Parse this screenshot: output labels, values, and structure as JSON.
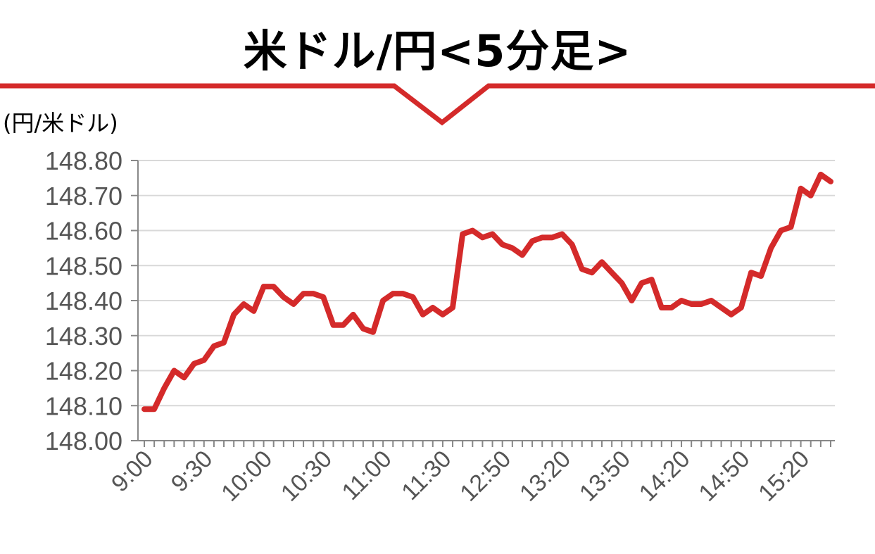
{
  "chart_data": {
    "type": "line",
    "title": "米ドル/円<5分足>",
    "ylabel": "(円/米ドル)",
    "xlabel": "",
    "ylim": [
      148.0,
      148.8
    ],
    "yticks": [
      "148.80",
      "148.70",
      "148.60",
      "148.50",
      "148.40",
      "148.30",
      "148.20",
      "148.10",
      "148.00"
    ],
    "xtick_labels": [
      "9:00",
      "9:30",
      "10:00",
      "10:30",
      "11:00",
      "11:30",
      "12:50",
      "13:20",
      "13:50",
      "14:20",
      "14:50",
      "15:20"
    ],
    "grid": true,
    "legend": "none",
    "series": [
      {
        "color": "#d42a2a",
        "values": [
          148.09,
          148.09,
          148.15,
          148.2,
          148.18,
          148.22,
          148.23,
          148.27,
          148.28,
          148.36,
          148.39,
          148.37,
          148.44,
          148.44,
          148.41,
          148.39,
          148.42,
          148.42,
          148.41,
          148.33,
          148.33,
          148.36,
          148.32,
          148.31,
          148.4,
          148.42,
          148.42,
          148.41,
          148.36,
          148.38,
          148.36,
          148.38,
          148.59,
          148.6,
          148.58,
          148.59,
          148.56,
          148.55,
          148.53,
          148.57,
          148.58,
          148.58,
          148.59,
          148.56,
          148.49,
          148.48,
          148.51,
          148.48,
          148.45,
          148.4,
          148.45,
          148.46,
          148.38,
          148.38,
          148.4,
          148.39,
          148.39,
          148.4,
          148.38,
          148.36,
          148.38,
          148.48,
          148.47,
          148.55,
          148.6,
          148.61,
          148.72,
          148.7,
          148.76,
          148.74
        ]
      }
    ]
  },
  "colors": {
    "accent": "#d42a2a",
    "grid": "#d9d9d9",
    "axis": "#888888"
  }
}
